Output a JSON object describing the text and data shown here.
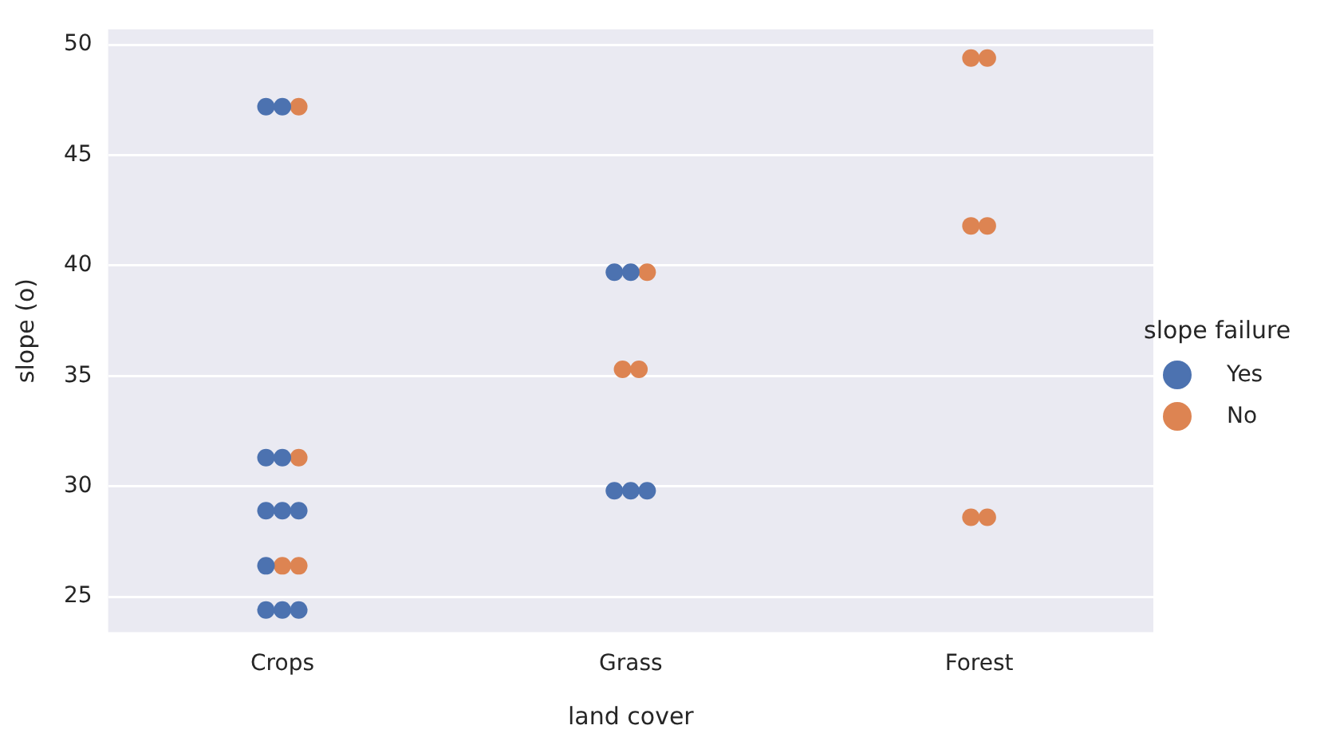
{
  "chart_data": {
    "type": "scatter",
    "xlabel": "land cover",
    "ylabel": "slope (o)",
    "legend_title": "slope failure",
    "categories": [
      "Crops",
      "Grass",
      "Forest"
    ],
    "series": [
      {
        "name": "Yes",
        "color": "#4c72b0",
        "x": [
          "Crops",
          "Crops",
          "Crops",
          "Crops",
          "Crops",
          "Crops",
          "Crops",
          "Crops",
          "Crops",
          "Crops",
          "Crops",
          "Grass",
          "Grass",
          "Grass",
          "Grass",
          "Grass"
        ],
        "values": [
          47.2,
          47.2,
          31.3,
          31.3,
          28.9,
          28.9,
          28.9,
          26.4,
          24.4,
          24.4,
          24.4,
          39.7,
          39.7,
          29.8,
          29.8,
          29.8
        ]
      },
      {
        "name": "No",
        "color": "#dd8452",
        "x": [
          "Crops",
          "Crops",
          "Crops",
          "Crops",
          "Grass",
          "Grass",
          "Grass",
          "Forest",
          "Forest",
          "Forest",
          "Forest",
          "Forest",
          "Forest"
        ],
        "values": [
          47.2,
          31.3,
          26.4,
          26.4,
          39.7,
          35.3,
          35.3,
          49.4,
          49.4,
          41.8,
          41.8,
          28.6,
          28.6
        ]
      }
    ],
    "ylim": [
      23.4,
      50.7
    ],
    "yticks": [
      25,
      30,
      35,
      40,
      45,
      50
    ],
    "grid": "y",
    "legend": "right",
    "marker": "circle"
  }
}
